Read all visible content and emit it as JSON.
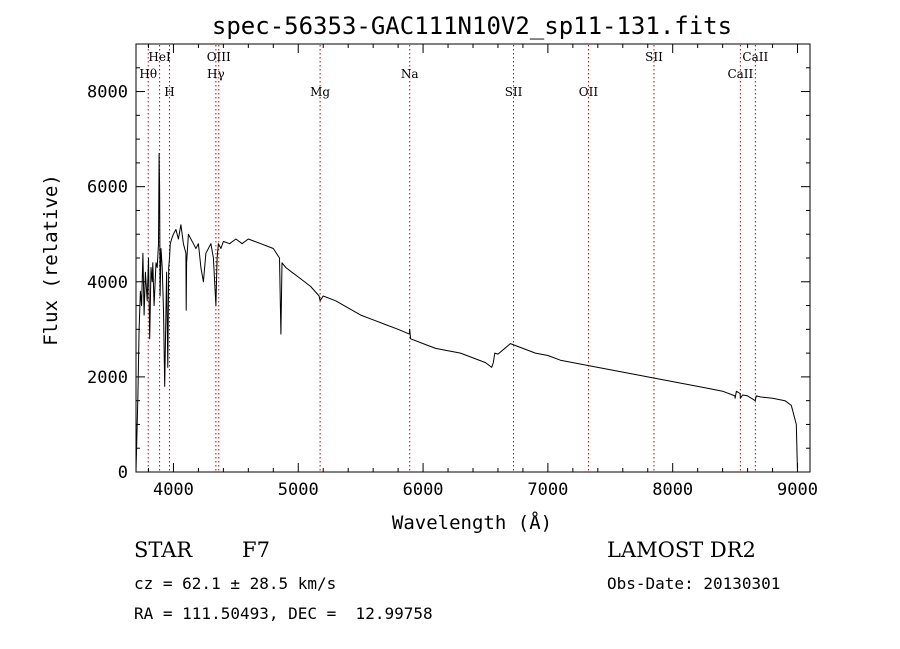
{
  "chart_data": {
    "type": "line",
    "title": "spec-56353-GAC111N10V2_sp11-131.fits",
    "xlabel": "Wavelength (Å)",
    "ylabel": "Flux (relative)",
    "xlim": [
      3700,
      9100
    ],
    "ylim": [
      0,
      9000
    ],
    "x_ticks": [
      4000,
      5000,
      6000,
      7000,
      8000,
      9000
    ],
    "x_tick_labels": [
      "4000",
      "5000",
      "6000",
      "7000",
      "8000",
      "9000"
    ],
    "y_ticks": [
      0,
      2000,
      4000,
      6000,
      8000
    ],
    "y_tick_labels": [
      "0",
      "2000",
      "4000",
      "6000",
      "8000"
    ],
    "grid": false,
    "spectrum_line_color": "#000000",
    "marker_line_color": "#cc0000",
    "series": [
      {
        "x": [
          3700,
          3715,
          3725,
          3735,
          3745,
          3755,
          3765,
          3775,
          3790,
          3800,
          3810,
          3820,
          3830,
          3835,
          3845,
          3860,
          3870,
          3880,
          3885,
          3889,
          3893,
          3900,
          3910,
          3920,
          3930,
          3945,
          3955,
          3962,
          3968,
          3975,
          3985,
          4000,
          4020,
          4040,
          4060,
          4080,
          4100,
          4102,
          4105,
          4120,
          4140,
          4160,
          4180,
          4200,
          4220,
          4240,
          4260,
          4280,
          4300,
          4320,
          4340,
          4345,
          4350,
          4360,
          4380,
          4400,
          4450,
          4500,
          4550,
          4600,
          4650,
          4700,
          4750,
          4800,
          4850,
          4861,
          4870,
          4900,
          4950,
          5000,
          5100,
          5167,
          5175,
          5200,
          5300,
          5400,
          5500,
          5600,
          5700,
          5800,
          5890,
          5893,
          5900,
          6000,
          6100,
          6200,
          6300,
          6400,
          6500,
          6550,
          6563,
          6575,
          6600,
          6700,
          6800,
          6900,
          7000,
          7100,
          7200,
          7300,
          7400,
          7500,
          7600,
          7700,
          7800,
          7900,
          8000,
          8100,
          8200,
          8300,
          8400,
          8498,
          8500,
          8510,
          8540,
          8542,
          8560,
          8600,
          8662,
          8670,
          8700,
          8800,
          8900,
          8950,
          8990,
          9000
        ],
        "y": [
          0,
          1600,
          3000,
          3800,
          3500,
          4600,
          3300,
          4200,
          3600,
          4500,
          2800,
          4300,
          4000,
          4400,
          3500,
          4400,
          4300,
          4800,
          6700,
          6000,
          3700,
          4700,
          4300,
          3400,
          1800,
          4200,
          2200,
          4300,
          4500,
          4800,
          4900,
          5000,
          5100,
          4900,
          5200,
          4800,
          4600,
          3400,
          4400,
          5000,
          4900,
          4800,
          4700,
          4800,
          4300,
          4000,
          4600,
          4700,
          4800,
          4500,
          3500,
          4000,
          4500,
          4800,
          4700,
          4850,
          4800,
          4900,
          4800,
          4900,
          4850,
          4800,
          4750,
          4700,
          4500,
          2900,
          4400,
          4300,
          4200,
          4100,
          3900,
          3700,
          3600,
          3700,
          3600,
          3450,
          3300,
          3200,
          3100,
          3000,
          2900,
          3000,
          2800,
          2700,
          2600,
          2550,
          2500,
          2400,
          2300,
          2200,
          2300,
          2500,
          2480,
          2700,
          2600,
          2500,
          2450,
          2350,
          2300,
          2250,
          2200,
          2150,
          2100,
          2050,
          2000,
          1950,
          1900,
          1850,
          1800,
          1750,
          1700,
          1600,
          1550,
          1700,
          1650,
          1550,
          1620,
          1600,
          1500,
          1600,
          1580,
          1550,
          1500,
          1400,
          1000,
          0
        ]
      }
    ],
    "line_markers": [
      {
        "label": "HeI",
        "x": 3889,
        "row": 1
      },
      {
        "label": "Hθ",
        "x": 3798,
        "row": 2
      },
      {
        "label": "H",
        "x": 3968,
        "row": 3
      },
      {
        "label": "OIII",
        "x": 4363,
        "row": 1
      },
      {
        "label": "Hγ",
        "x": 4340,
        "row": 2
      },
      {
        "label": "Mg",
        "x": 5175,
        "row": 3
      },
      {
        "label": "Na",
        "x": 5893,
        "row": 2
      },
      {
        "label": "SII",
        "x": 6725,
        "row": 3
      },
      {
        "label": "OII",
        "x": 7325,
        "row": 3
      },
      {
        "label": "SII",
        "x": 7850,
        "row": 1
      },
      {
        "label": "CaII",
        "x": 8662,
        "row": 1
      },
      {
        "label": "CaII",
        "x": 8542,
        "row": 2
      }
    ]
  },
  "info": {
    "object_class": "STAR",
    "subclass": "F7",
    "survey": "LAMOST DR2",
    "velocity": "cz = 62.1 ± 28.5 km/s",
    "obs_date": "Obs-Date: 20130301",
    "coords": "RA = 111.50493, DEC =  12.99758"
  }
}
